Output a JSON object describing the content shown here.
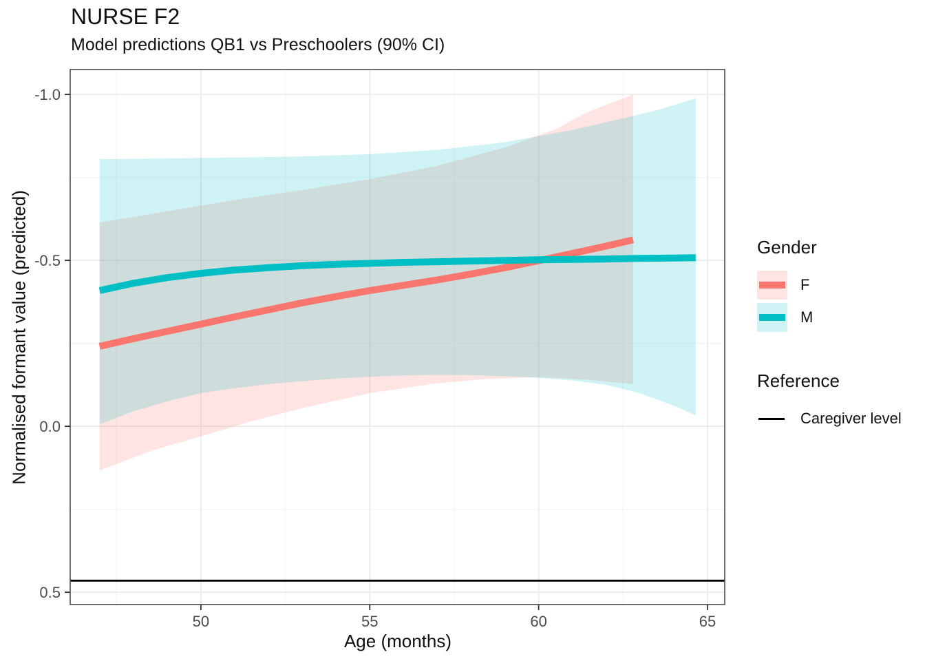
{
  "title": "NURSE F2",
  "subtitle": "Model predictions QB1 vs Preschoolers (90% CI)",
  "axes": {
    "x": {
      "label": "Age (months)",
      "ticks": [
        50,
        55,
        60,
        65
      ],
      "tick_labels": [
        "50",
        "55",
        "60",
        "65"
      ],
      "minor_ticks": [
        47.5,
        52.5,
        57.5,
        62.5
      ],
      "range": [
        46.13,
        65.51
      ]
    },
    "y": {
      "label": "Normalised formant value (predicted)",
      "ticks": [
        -1.0,
        -0.5,
        0.0,
        0.5
      ],
      "tick_labels": [
        "-1.0",
        "-0.5",
        "0.0",
        "0.5"
      ],
      "minor_ticks": [
        -0.75,
        -0.25,
        0.25
      ],
      "reversed": true,
      "range_top_value": -1.075,
      "range_bottom_value": 0.537
    }
  },
  "legend": {
    "gender_title": "Gender",
    "items": [
      {
        "label": "F",
        "line_color": "#F8766D",
        "ribbon_color": "rgba(248,118,109,0.20)"
      },
      {
        "label": "M",
        "line_color": "#00BFC4",
        "ribbon_color": "rgba(0,191,196,0.19)"
      }
    ],
    "reference_title": "Reference",
    "reference_label": "Caregiver level",
    "reference_color": "#000000"
  },
  "colors": {
    "line_f": "#F8766D",
    "line_m": "#00BFC4",
    "ribbon_f": "rgba(248,118,109,0.20)",
    "ribbon_m": "rgba(0,191,196,0.19)",
    "reference_line": "#000000",
    "grid_major": "#EBEBEB",
    "grid_minor": "#F5F5F5",
    "panel_border": "#4a4a4a",
    "tick_mark": "#333333",
    "tick_label": "#4d4d4d"
  },
  "chart_data": {
    "type": "line",
    "title": "NURSE F2",
    "subtitle": "Model predictions QB1 vs Preschoolers (90% CI)",
    "xlabel": "Age (months)",
    "ylabel": "Normalised formant value (predicted)",
    "x_range": [
      46.13,
      65.51
    ],
    "y_axis_reversed": true,
    "y_screen_range": [
      -1.075,
      0.537
    ],
    "confidence_level": "90% CI",
    "grid": true,
    "legend_position": "right",
    "reference": {
      "label": "Caregiver level",
      "value": 0.465
    },
    "series": [
      {
        "name": "F",
        "color": "#F8766D",
        "points": [
          [
            47.0,
            -0.241
          ],
          [
            48.0,
            -0.264
          ],
          [
            49.0,
            -0.286
          ],
          [
            50.0,
            -0.308
          ],
          [
            51.0,
            -0.33
          ],
          [
            52.0,
            -0.351
          ],
          [
            53.0,
            -0.372
          ],
          [
            54.0,
            -0.391
          ],
          [
            55.0,
            -0.409
          ],
          [
            56.0,
            -0.425
          ],
          [
            57.0,
            -0.441
          ],
          [
            58.0,
            -0.459
          ],
          [
            59.0,
            -0.478
          ],
          [
            60.0,
            -0.499
          ],
          [
            61.0,
            -0.521
          ],
          [
            62.0,
            -0.543
          ],
          [
            62.8,
            -0.562
          ]
        ],
        "ribbon_upper": [
          [
            47.0,
            -0.614
          ],
          [
            49.0,
            -0.648
          ],
          [
            51.0,
            -0.682
          ],
          [
            53.0,
            -0.712
          ],
          [
            55.0,
            -0.745
          ],
          [
            57.0,
            -0.785
          ],
          [
            59.0,
            -0.84
          ],
          [
            60.5,
            -0.895
          ],
          [
            61.4,
            -0.945
          ],
          [
            62.8,
            -1.0
          ]
        ],
        "ribbon_lower": [
          [
            47.0,
            0.133
          ],
          [
            48.5,
            0.075
          ],
          [
            50.0,
            0.03
          ],
          [
            51.5,
            -0.015
          ],
          [
            53.0,
            -0.055
          ],
          [
            55.0,
            -0.1
          ],
          [
            57.0,
            -0.13
          ],
          [
            58.5,
            -0.143
          ],
          [
            60.0,
            -0.148
          ],
          [
            61.5,
            -0.14
          ],
          [
            62.8,
            -0.127
          ]
        ]
      },
      {
        "name": "M",
        "color": "#00BFC4",
        "points": [
          [
            47.0,
            -0.409
          ],
          [
            48.0,
            -0.431
          ],
          [
            49.0,
            -0.448
          ],
          [
            50.0,
            -0.461
          ],
          [
            51.0,
            -0.471
          ],
          [
            52.0,
            -0.478
          ],
          [
            53.0,
            -0.484
          ],
          [
            54.0,
            -0.488
          ],
          [
            55.0,
            -0.491
          ],
          [
            56.0,
            -0.494
          ],
          [
            57.0,
            -0.496
          ],
          [
            58.0,
            -0.498
          ],
          [
            59.0,
            -0.5
          ],
          [
            60.0,
            -0.502
          ],
          [
            61.0,
            -0.503
          ],
          [
            62.0,
            -0.504
          ],
          [
            63.0,
            -0.506
          ],
          [
            64.0,
            -0.507
          ],
          [
            64.65,
            -0.508
          ]
        ],
        "ribbon_upper": [
          [
            47.0,
            -0.805
          ],
          [
            49.0,
            -0.807
          ],
          [
            51.0,
            -0.81
          ],
          [
            53.0,
            -0.813
          ],
          [
            55.0,
            -0.82
          ],
          [
            57.0,
            -0.833
          ],
          [
            59.0,
            -0.856
          ],
          [
            61.0,
            -0.893
          ],
          [
            62.5,
            -0.928
          ],
          [
            63.5,
            -0.952
          ],
          [
            64.65,
            -0.988
          ]
        ],
        "ribbon_lower": [
          [
            47.0,
            -0.006
          ],
          [
            48.0,
            -0.045
          ],
          [
            49.0,
            -0.075
          ],
          [
            50.0,
            -0.1
          ],
          [
            51.0,
            -0.115
          ],
          [
            52.0,
            -0.127
          ],
          [
            53.0,
            -0.136
          ],
          [
            54.0,
            -0.144
          ],
          [
            55.0,
            -0.149
          ],
          [
            56.0,
            -0.153
          ],
          [
            57.0,
            -0.155
          ],
          [
            58.0,
            -0.154
          ],
          [
            59.0,
            -0.151
          ],
          [
            60.0,
            -0.146
          ],
          [
            61.0,
            -0.138
          ],
          [
            62.0,
            -0.125
          ],
          [
            63.0,
            -0.1
          ],
          [
            64.0,
            -0.062
          ],
          [
            64.65,
            -0.033
          ]
        ]
      }
    ]
  }
}
